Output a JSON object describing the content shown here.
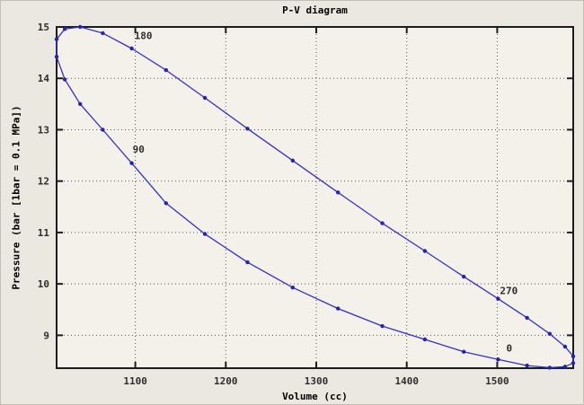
{
  "figure": {
    "kind": "octave-gnuplot-plot-window"
  },
  "colors": {
    "background": "#ebe8e1",
    "plot_background": "#f4f1eb",
    "axis": "#1c1c1c",
    "grid": "#565656",
    "line": "#3232c8",
    "marker": "#2323b4",
    "text": "#2e2e2e"
  },
  "chart_data": {
    "type": "line",
    "title": "P-V diagram",
    "xlabel": "Volume (cc)",
    "ylabel": "Pressure (bar [1bar = 0.1 MPa])",
    "xlim": [
      1013,
      1584
    ],
    "ylim": [
      8.36,
      15.0
    ],
    "x_ticks": [
      1100,
      1200,
      1300,
      1400,
      1500
    ],
    "y_ticks": [
      9,
      10,
      11,
      12,
      13,
      14,
      15
    ],
    "grid": "dotted",
    "legend_position": "none",
    "series": [
      {
        "name": "stirling-cycle-pv-loop",
        "closed": true,
        "marker": "point",
        "parameter": "crank angle, degrees, start 0 step 10",
        "points": [
          [
            1501,
            8.53
          ],
          [
            1463,
            8.68
          ],
          [
            1420,
            8.92
          ],
          [
            1373,
            9.18
          ],
          [
            1324,
            9.52
          ],
          [
            1274,
            9.93
          ],
          [
            1224,
            10.42
          ],
          [
            1177,
            10.97
          ],
          [
            1134,
            11.57
          ],
          [
            1096,
            12.35
          ],
          [
            1064,
            13.0
          ],
          [
            1039,
            13.5
          ],
          [
            1022,
            13.98
          ],
          [
            1013,
            14.42
          ],
          [
            1013,
            14.76
          ],
          [
            1022,
            14.96
          ],
          [
            1039,
            15.0
          ],
          [
            1064,
            14.88
          ],
          [
            1096,
            14.58
          ],
          [
            1134,
            14.16
          ],
          [
            1177,
            13.62
          ],
          [
            1224,
            13.02
          ],
          [
            1274,
            12.4
          ],
          [
            1324,
            11.78
          ],
          [
            1373,
            11.18
          ],
          [
            1420,
            10.64
          ],
          [
            1463,
            10.14
          ],
          [
            1501,
            9.71
          ],
          [
            1533,
            9.34
          ],
          [
            1558,
            9.03
          ],
          [
            1575,
            8.78
          ],
          [
            1584,
            8.59
          ],
          [
            1584,
            8.46
          ],
          [
            1575,
            8.39
          ],
          [
            1558,
            8.37
          ],
          [
            1533,
            8.41
          ]
        ]
      }
    ],
    "annotations": [
      {
        "text": "0",
        "v": 1510,
        "p": 8.75
      },
      {
        "text": "90",
        "v": 1097,
        "p": 12.62
      },
      {
        "text": "180",
        "v": 1099,
        "p": 14.83
      },
      {
        "text": "270",
        "v": 1503,
        "p": 9.87
      }
    ]
  }
}
